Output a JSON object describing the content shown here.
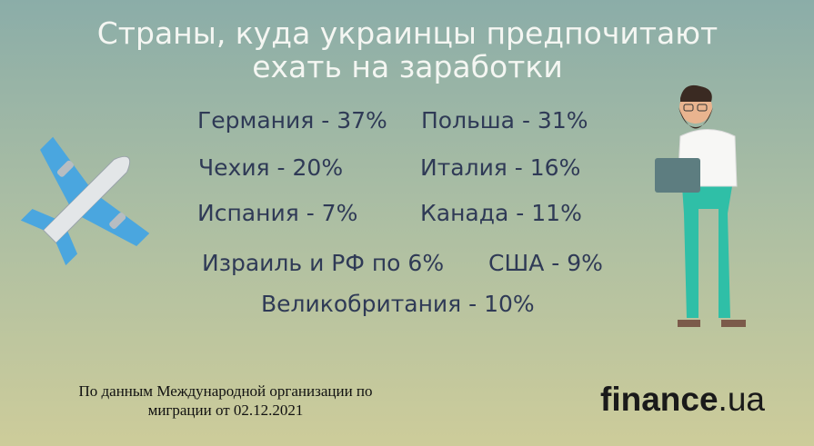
{
  "header": {
    "title_lines": [
      "Страны, куда украинцы предпочитают",
      "ехать на заработки"
    ]
  },
  "items": [
    {
      "text": "Германия - 37%"
    },
    {
      "text": "Польша - 31%"
    },
    {
      "text": "Чехия - 20%"
    },
    {
      "text": "Италия - 16%"
    },
    {
      "text": "Испания - 7%"
    },
    {
      "text": "Канада - 11%"
    },
    {
      "text": "Израиль и РФ по 6%"
    },
    {
      "text": "США - 9%"
    },
    {
      "text": "Великобритания - 10%"
    }
  ],
  "footer": {
    "source_lines": [
      "По данным Международной организации по",
      "миграции от 02.12.2021"
    ]
  },
  "logo": {
    "name": "finance",
    "suffix": ".ua"
  }
}
